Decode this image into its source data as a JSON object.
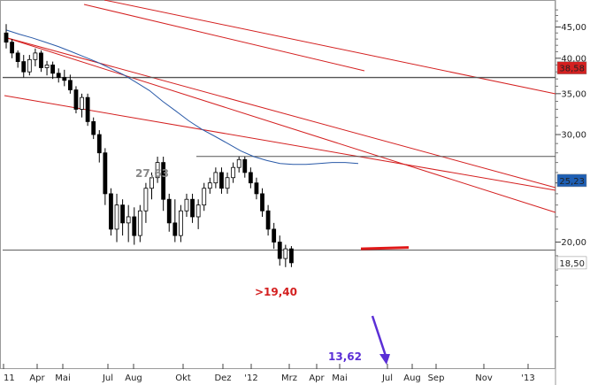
{
  "chart_data": {
    "type": "candlestick",
    "scale": "log",
    "ylim": [
      12.6,
      49
    ],
    "y_ticks": [
      "20,00",
      "25,00",
      "30,00",
      "35,00",
      "40,00",
      "45,00"
    ],
    "x_ticks": [
      "11",
      "Apr",
      "Mai",
      "Jul",
      "Aug",
      "Okt",
      "Dez",
      "'12",
      "Mrz",
      "Apr",
      "Mai",
      "Jul",
      "Aug",
      "Sep",
      "Nov",
      "'13"
    ],
    "price_badges": [
      {
        "label": "38,58",
        "value": 38.58,
        "color": "#d42020"
      },
      {
        "label": "25,23",
        "value": 25.23,
        "color": "#1e5fb4"
      },
      {
        "label": "18,50",
        "value": 18.5,
        "color": "#ffffff"
      }
    ],
    "annotations": [
      {
        "text": "27,63",
        "color": "#888888"
      },
      {
        "text": ">19,40",
        "color": "#d42020"
      },
      {
        "text": "13,62",
        "color": "#5b2fd6"
      }
    ],
    "horizontal_levels": [
      37.2,
      27.63,
      19.4
    ],
    "candles": [
      [
        44,
        45.5,
        41.5,
        42.5
      ],
      [
        42.5,
        43,
        40,
        40.8
      ],
      [
        40.8,
        41.2,
        38.6,
        39.5
      ],
      [
        39.5,
        40.5,
        37.2,
        38.0
      ],
      [
        38.0,
        40.5,
        37.5,
        39.8
      ],
      [
        39.8,
        41.5,
        38.8,
        40.8
      ],
      [
        40.8,
        41.2,
        38.0,
        38.6
      ],
      [
        38.6,
        39.6,
        37.5,
        39.0
      ],
      [
        39.0,
        39.5,
        37.0,
        37.8
      ],
      [
        37.8,
        38.5,
        36.5,
        37.2
      ],
      [
        37.2,
        38.3,
        36.0,
        36.8
      ],
      [
        36.8,
        37.6,
        35.0,
        35.5
      ],
      [
        35.5,
        36.0,
        32.5,
        33.0
      ],
      [
        33.0,
        35.0,
        32.0,
        34.5
      ],
      [
        34.5,
        35.0,
        31.0,
        31.5
      ],
      [
        31.5,
        32.0,
        29.5,
        30.0
      ],
      [
        30.0,
        30.5,
        27.0,
        28.0
      ],
      [
        28.0,
        28.5,
        23.0,
        24.0
      ],
      [
        24.0,
        24.5,
        20.5,
        21.0
      ],
      [
        21.0,
        24.0,
        20.0,
        23.0
      ],
      [
        23.0,
        23.5,
        20.5,
        21.5
      ],
      [
        21.5,
        23.0,
        20.0,
        22.0
      ],
      [
        22.0,
        22.8,
        19.8,
        20.5
      ],
      [
        20.5,
        23.0,
        20.0,
        22.5
      ],
      [
        22.5,
        25.0,
        21.5,
        24.5
      ],
      [
        24.5,
        26.0,
        23.5,
        25.5
      ],
      [
        25.5,
        27.6,
        25.0,
        27.0
      ],
      [
        27.0,
        27.6,
        22.5,
        23.5
      ],
      [
        23.5,
        24.0,
        20.8,
        21.5
      ],
      [
        21.5,
        23.5,
        20.0,
        20.5
      ],
      [
        20.5,
        23.0,
        20.0,
        22.5
      ],
      [
        22.5,
        24.0,
        22.0,
        23.5
      ],
      [
        23.5,
        24.0,
        21.5,
        22.0
      ],
      [
        22.0,
        23.5,
        21.0,
        23.0
      ],
      [
        23.0,
        25.0,
        22.5,
        24.5
      ],
      [
        24.5,
        25.5,
        24.0,
        25.0
      ],
      [
        25.0,
        26.5,
        24.5,
        26.0
      ],
      [
        26.0,
        26.5,
        24.0,
        24.5
      ],
      [
        24.5,
        26.0,
        24.0,
        25.5
      ],
      [
        25.5,
        27.0,
        25.0,
        26.5
      ],
      [
        26.5,
        27.6,
        26.0,
        27.3
      ],
      [
        27.3,
        27.6,
        25.5,
        26.0
      ],
      [
        26.0,
        26.5,
        24.5,
        25.0
      ],
      [
        25.0,
        25.5,
        23.5,
        24.0
      ],
      [
        24.0,
        24.5,
        22.0,
        22.5
      ],
      [
        22.5,
        23.0,
        20.5,
        21.0
      ],
      [
        21.0,
        21.5,
        19.5,
        20.0
      ],
      [
        20.0,
        20.5,
        18.3,
        18.8
      ],
      [
        18.8,
        19.8,
        18.2,
        19.5
      ],
      [
        19.5,
        19.7,
        18.2,
        18.5
      ]
    ],
    "ma": [
      44.5,
      43.8,
      43.2,
      42.5,
      41.8,
      41.0,
      40.2,
      39.4,
      38.5,
      37.6,
      36.5,
      35.4,
      34.0,
      32.8,
      31.6,
      30.6,
      29.8,
      29.0,
      28.2,
      27.6,
      27.2,
      26.9,
      26.8,
      26.8,
      26.9,
      27.0,
      27.0,
      26.9
    ]
  }
}
